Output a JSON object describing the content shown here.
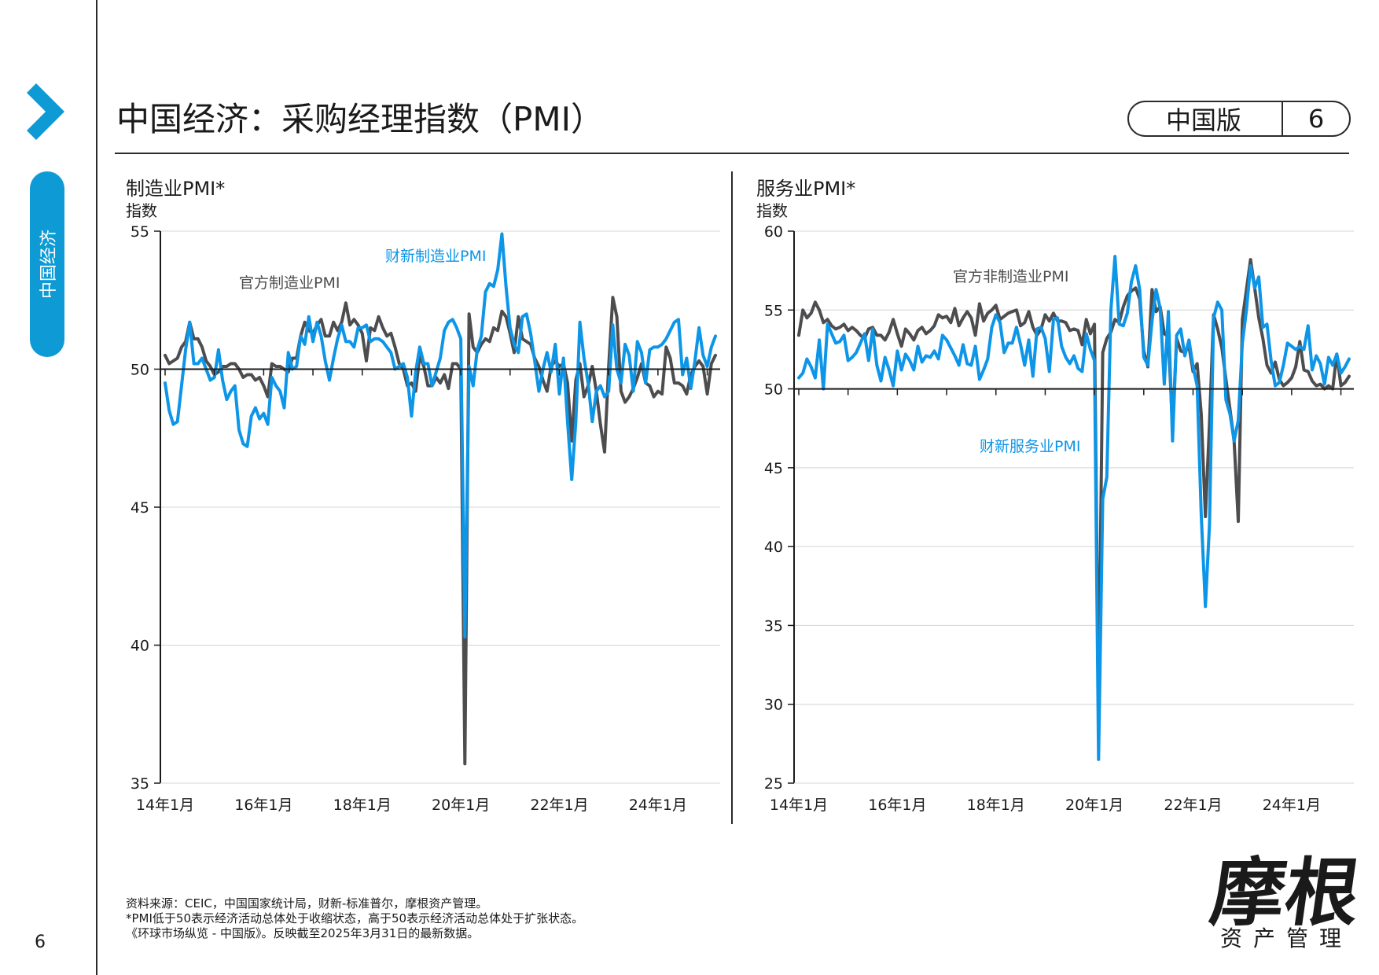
{
  "header": {
    "title": "中国经济：采购经理指数（PMI）",
    "edition": "中国版",
    "slide_number": "6"
  },
  "sidebar": {
    "section_label": "中国经济",
    "page_number": "6",
    "accent_color": "#0e9bd5"
  },
  "footer": {
    "notes": [
      "资料来源：CEIC，中国国家统计局，财新-标准普尔，摩根资产管理。",
      "*PMI低于50表示经济活动总体处于收缩状态，高于50表示经济活动总体处于扩张状态。",
      "《环球市场纵览 - 中国版》。反映截至2025年3月31日的最新数据。"
    ],
    "logo_main": "摩根",
    "logo_sub": "资产管理"
  },
  "colors": {
    "official": "#4d4d4f",
    "caixin": "#0d95e8",
    "axis": "#1a1a1a",
    "grid": "#d4d4d4"
  },
  "chart_data": [
    {
      "type": "line",
      "title": "制造业PMI*",
      "ylabel": "指数",
      "ylim": [
        35,
        55
      ],
      "yticks": [
        35,
        40,
        45,
        50,
        55
      ],
      "reference_line": 50,
      "xlim": [
        "2014-01",
        "2025-03"
      ],
      "x_tick_labels": [
        "14年1月",
        "16年1月",
        "18年1月",
        "20年1月",
        "22年1月",
        "24年1月"
      ],
      "series": [
        {
          "name": "官方制造业PMI",
          "color": "#4d4d4f",
          "values": [
            50.5,
            50.2,
            50.3,
            50.4,
            50.8,
            51.0,
            51.7,
            51.1,
            51.1,
            50.8,
            50.3,
            50.1,
            49.8,
            49.9,
            50.1,
            50.1,
            50.2,
            50.2,
            50.0,
            49.7,
            49.8,
            49.8,
            49.6,
            49.7,
            49.4,
            49.0,
            50.2,
            50.1,
            50.1,
            50.0,
            49.9,
            50.4,
            50.4,
            51.2,
            51.7,
            51.4,
            51.3,
            51.6,
            51.8,
            51.2,
            51.2,
            51.7,
            51.4,
            51.7,
            52.4,
            51.6,
            51.8,
            51.6,
            51.3,
            50.3,
            51.5,
            51.4,
            51.9,
            51.5,
            51.2,
            51.3,
            50.8,
            50.2,
            50.0,
            49.4,
            49.5,
            49.2,
            50.5,
            50.1,
            49.4,
            49.4,
            49.7,
            49.5,
            49.8,
            49.3,
            50.2,
            50.2,
            50.0,
            35.7,
            52.0,
            50.8,
            50.6,
            50.9,
            51.1,
            51.0,
            51.5,
            51.4,
            52.1,
            51.9,
            51.3,
            50.6,
            51.9,
            51.1,
            51.0,
            50.9,
            50.4,
            50.1,
            49.6,
            49.2,
            50.1,
            50.3,
            50.1,
            50.2,
            49.5,
            47.4,
            49.6,
            50.2,
            49.0,
            49.4,
            50.1,
            49.2,
            48.0,
            47.0,
            50.1,
            52.6,
            51.9,
            49.2,
            48.8,
            49.0,
            49.3,
            49.7,
            50.2,
            49.5,
            49.4,
            49.0,
            49.2,
            49.1,
            50.8,
            50.4,
            49.5,
            49.5,
            49.4,
            49.1,
            49.8,
            50.1,
            50.3,
            50.1,
            49.1,
            50.2,
            50.5
          ]
        },
        {
          "name": "财新制造业PMI",
          "color": "#0d95e8",
          "values": [
            49.5,
            48.5,
            48.0,
            48.1,
            49.4,
            50.7,
            51.7,
            50.2,
            50.2,
            50.4,
            50.0,
            49.6,
            49.7,
            50.7,
            49.6,
            48.9,
            49.2,
            49.4,
            47.8,
            47.3,
            47.2,
            48.3,
            48.6,
            48.2,
            48.4,
            48.0,
            49.7,
            49.4,
            49.2,
            48.6,
            50.6,
            50.0,
            50.1,
            51.2,
            50.9,
            51.9,
            51.0,
            51.7,
            51.2,
            50.3,
            49.6,
            50.4,
            51.1,
            51.6,
            51.0,
            51.0,
            50.8,
            51.5,
            51.5,
            51.6,
            51.0,
            51.1,
            51.1,
            51.0,
            50.8,
            50.6,
            50.0,
            50.1,
            50.2,
            49.7,
            48.3,
            49.9,
            50.8,
            50.2,
            50.2,
            49.4,
            49.9,
            50.4,
            51.4,
            51.7,
            51.8,
            51.5,
            51.1,
            40.3,
            50.1,
            49.4,
            50.7,
            51.2,
            52.8,
            53.1,
            53.0,
            53.6,
            54.9,
            53.0,
            51.5,
            50.9,
            50.6,
            51.9,
            52.0,
            51.3,
            50.3,
            49.2,
            50.0,
            50.6,
            49.9,
            50.9,
            49.1,
            50.4,
            48.1,
            46.0,
            48.1,
            51.7,
            50.4,
            49.5,
            48.1,
            49.2,
            49.4,
            49.0,
            49.2,
            51.6,
            50.0,
            49.5,
            50.9,
            50.5,
            49.2,
            51.0,
            50.6,
            49.5,
            50.7,
            50.8,
            50.8,
            50.9,
            51.1,
            51.4,
            51.7,
            51.8,
            49.8,
            50.4,
            49.3,
            50.3,
            51.5,
            50.5,
            50.1,
            50.8,
            51.2
          ]
        }
      ],
      "annotations": [
        {
          "text": "财新制造业PMI",
          "series": "财新制造业PMI"
        },
        {
          "text": "官方制造业PMI",
          "series": "官方制造业PMI"
        }
      ]
    },
    {
      "type": "line",
      "title": "服务业PMI*",
      "ylabel": "指数",
      "ylim": [
        25,
        60
      ],
      "yticks": [
        25,
        30,
        35,
        40,
        45,
        50,
        55,
        60
      ],
      "reference_line": 50,
      "xlim": [
        "2014-01",
        "2025-03"
      ],
      "x_tick_labels": [
        "14年1月",
        "16年1月",
        "18年1月",
        "20年1月",
        "22年1月",
        "24年1月"
      ],
      "series": [
        {
          "name": "官方非制造业PMI",
          "color": "#4d4d4f",
          "values": [
            53.4,
            55.0,
            54.5,
            54.8,
            55.5,
            55.0,
            54.2,
            54.4,
            54.0,
            53.8,
            53.9,
            54.1,
            53.7,
            53.9,
            53.7,
            53.4,
            53.2,
            53.8,
            53.9,
            53.4,
            53.4,
            53.1,
            53.6,
            54.4,
            53.5,
            52.7,
            53.8,
            53.5,
            53.1,
            53.7,
            53.9,
            53.5,
            53.7,
            54.0,
            54.7,
            54.5,
            54.6,
            54.2,
            55.1,
            54.0,
            54.5,
            54.9,
            54.5,
            53.4,
            55.4,
            54.3,
            54.8,
            55.0,
            55.3,
            54.4,
            54.6,
            54.8,
            54.9,
            55.0,
            54.0,
            54.2,
            54.9,
            53.9,
            53.4,
            53.8,
            54.7,
            54.3,
            54.8,
            54.3,
            54.3,
            54.2,
            53.7,
            53.8,
            53.7,
            52.8,
            54.4,
            53.5,
            54.1,
            29.6,
            52.3,
            53.2,
            53.6,
            54.4,
            54.2,
            55.2,
            55.9,
            56.2,
            56.4,
            55.7,
            52.4,
            51.4,
            56.3,
            54.9,
            55.2,
            53.5,
            53.3,
            47.5,
            53.2,
            52.4,
            52.3,
            52.7,
            51.1,
            51.6,
            48.4,
            41.9,
            47.8,
            54.7,
            53.8,
            52.6,
            50.6,
            48.7,
            46.7,
            41.6,
            54.4,
            56.3,
            58.2,
            56.4,
            54.5,
            53.2,
            51.5,
            51.0,
            51.7,
            50.6,
            50.2,
            50.4,
            50.7,
            51.4,
            53.0,
            51.2,
            51.1,
            50.5,
            50.2,
            50.3,
            50.0,
            50.2,
            50.0,
            52.2,
            50.2,
            50.4,
            50.8
          ]
        },
        {
          "name": "财新服务业PMI",
          "color": "#0d95e8",
          "values": [
            50.7,
            51.0,
            51.9,
            51.4,
            50.7,
            53.1,
            50.0,
            54.1,
            53.5,
            52.9,
            53.0,
            53.4,
            51.8,
            52.0,
            52.3,
            52.9,
            53.5,
            51.8,
            53.8,
            51.5,
            50.5,
            52.0,
            51.2,
            50.2,
            52.4,
            51.2,
            52.2,
            51.8,
            51.2,
            52.7,
            51.7,
            52.1,
            52.0,
            52.4,
            51.9,
            53.4,
            53.1,
            52.6,
            52.1,
            51.5,
            52.8,
            51.6,
            51.5,
            52.7,
            50.6,
            51.2,
            51.9,
            53.9,
            54.7,
            54.2,
            52.3,
            52.9,
            52.9,
            53.9,
            52.8,
            51.5,
            53.1,
            50.8,
            53.8,
            53.9,
            53.2,
            51.1,
            54.4,
            54.5,
            52.7,
            52.0,
            51.6,
            52.1,
            51.3,
            51.1,
            53.5,
            52.5,
            51.8,
            26.5,
            43.0,
            44.4,
            55.0,
            58.4,
            54.1,
            54.0,
            54.8,
            56.8,
            57.8,
            56.3,
            52.0,
            51.5,
            54.3,
            56.3,
            55.1,
            50.3,
            54.9,
            46.7,
            53.4,
            53.8,
            52.1,
            53.1,
            51.4,
            50.2,
            42.0,
            36.2,
            41.4,
            54.5,
            55.5,
            55.0,
            49.3,
            48.4,
            46.7,
            48.0,
            52.9,
            55.0,
            57.8,
            56.4,
            57.1,
            53.9,
            54.1,
            51.8,
            50.2,
            50.4,
            51.5,
            52.9,
            52.7,
            52.5,
            52.7,
            52.5,
            54.0,
            51.2,
            52.1,
            51.6,
            50.3,
            52.0,
            51.5,
            52.2,
            51.0,
            51.4,
            51.9
          ]
        }
      ],
      "annotations": [
        {
          "text": "官方非制造业PMI",
          "series": "官方非制造业PMI"
        },
        {
          "text": "财新服务业PMI",
          "series": "财新服务业PMI"
        }
      ]
    }
  ]
}
